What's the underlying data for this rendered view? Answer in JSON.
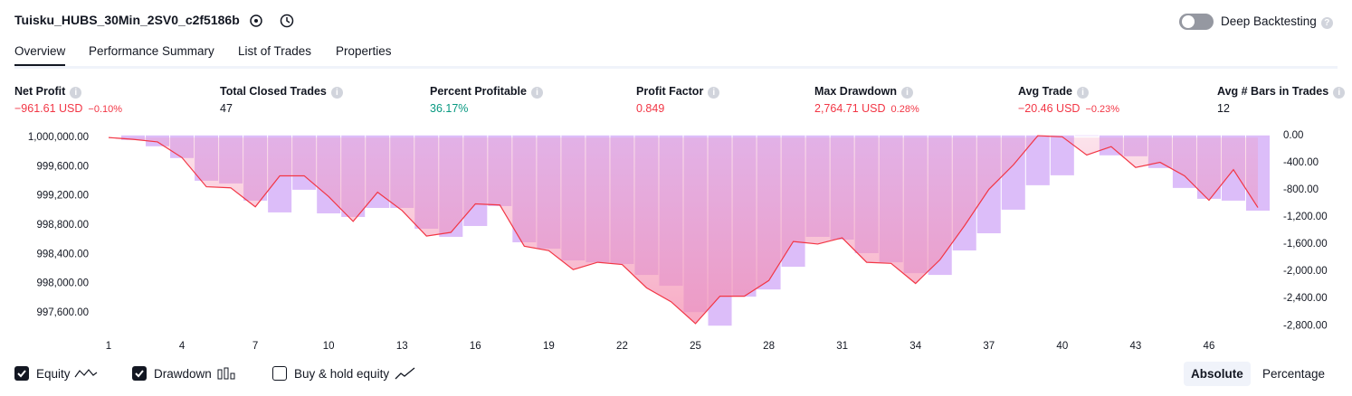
{
  "header": {
    "title": "Tuisku_HUBS_30Min_2SV0_c2f5186b",
    "toggle_label": "Deep Backtesting"
  },
  "tabs": [
    "Overview",
    "Performance Summary",
    "List of Trades",
    "Properties"
  ],
  "metrics": [
    {
      "label": "Net Profit",
      "value": "−961.61 USD",
      "change": "−0.10%"
    },
    {
      "label": "Total Closed Trades",
      "value": "47"
    },
    {
      "label": "Percent Profitable",
      "value": "36.17%"
    },
    {
      "label": "Profit Factor",
      "value": "0.849"
    },
    {
      "label": "Max Drawdown",
      "value": "2,764.71 USD",
      "change": "0.28%"
    },
    {
      "label": "Avg Trade",
      "value": "−20.46 USD",
      "change": "−0.23%"
    },
    {
      "label": "Avg # Bars in Trades",
      "value": "12"
    }
  ],
  "chart_data": {
    "type": "combo",
    "x": [
      1,
      2,
      3,
      4,
      5,
      6,
      7,
      8,
      9,
      10,
      11,
      12,
      13,
      14,
      15,
      16,
      17,
      18,
      19,
      20,
      21,
      22,
      23,
      24,
      25,
      26,
      27,
      28,
      29,
      30,
      31,
      32,
      33,
      34,
      35,
      36,
      37,
      38,
      39,
      40,
      41,
      42,
      43,
      44,
      45,
      46,
      47,
      48
    ],
    "xlim": [
      1,
      48
    ],
    "xticks": [
      1,
      4,
      7,
      10,
      13,
      16,
      19,
      22,
      25,
      28,
      31,
      34,
      37,
      40,
      43,
      46
    ],
    "ylim": [
      997300,
      1000150
    ],
    "yticks": [
      {
        "value": 1000000,
        "label": "1,000,000.00"
      },
      {
        "value": 999600,
        "label": "999,600.00"
      },
      {
        "value": 999200,
        "label": "999,200.00"
      },
      {
        "value": 998800,
        "label": "998,800.00"
      },
      {
        "value": 998400,
        "label": "998,400.00"
      },
      {
        "value": 998000,
        "label": "998,000.00"
      },
      {
        "value": 997600,
        "label": "997,600.00"
      }
    ],
    "y2lim": [
      -2930,
      130
    ],
    "y2ticks": [
      {
        "value": 0,
        "label": "0.00"
      },
      {
        "value": -400,
        "label": "-400.00"
      },
      {
        "value": -800,
        "label": "-800.00"
      },
      {
        "value": -1200,
        "label": "-1,200.00"
      },
      {
        "value": -1600,
        "label": "-1,600.00"
      },
      {
        "value": -2000,
        "label": "-2,000.00"
      },
      {
        "value": -2400,
        "label": "-2,400.00"
      },
      {
        "value": -2800,
        "label": "-2,800.00"
      }
    ],
    "grid": false,
    "series": [
      {
        "name": "Equity",
        "color": "#f23645",
        "area_color": "#f48fb1",
        "values": [
          1000000,
          999975,
          999940,
          999725,
          999325,
          999310,
          999050,
          999475,
          999475,
          999190,
          998850,
          999250,
          999000,
          998650,
          998700,
          999090,
          999075,
          998510,
          998450,
          998190,
          998290,
          998260,
          997940,
          997750,
          997450,
          997825,
          997825,
          998040,
          998575,
          998540,
          998625,
          998290,
          998275,
          998000,
          998325,
          998790,
          999290,
          999625,
          1000025,
          1000010,
          999760,
          999875,
          999590,
          999660,
          999475,
          999140,
          999560,
          999040
        ]
      },
      {
        "name": "Drawdown",
        "color": "#dcbdf9",
        "axis": "y2",
        "values": [
          null,
          -67,
          -160,
          -333,
          -667,
          -707,
          -960,
          -1133,
          -800,
          -1147,
          -1200,
          -1067,
          -1067,
          -1373,
          -1493,
          -1333,
          -1040,
          -1573,
          -1667,
          -1840,
          -1867,
          -1893,
          -2053,
          -2213,
          -2600,
          -2800,
          -2373,
          -2267,
          -1933,
          -1493,
          -1533,
          -1733,
          -1867,
          -2027,
          -2053,
          -1693,
          -1440,
          -1093,
          -733,
          -587,
          0,
          -293,
          -307,
          -480,
          -773,
          -933,
          -960,
          -1107
        ]
      }
    ],
    "buy_hold_label": "Buy & hold equity"
  },
  "scale_buttons": [
    "Absolute",
    "Percentage"
  ]
}
